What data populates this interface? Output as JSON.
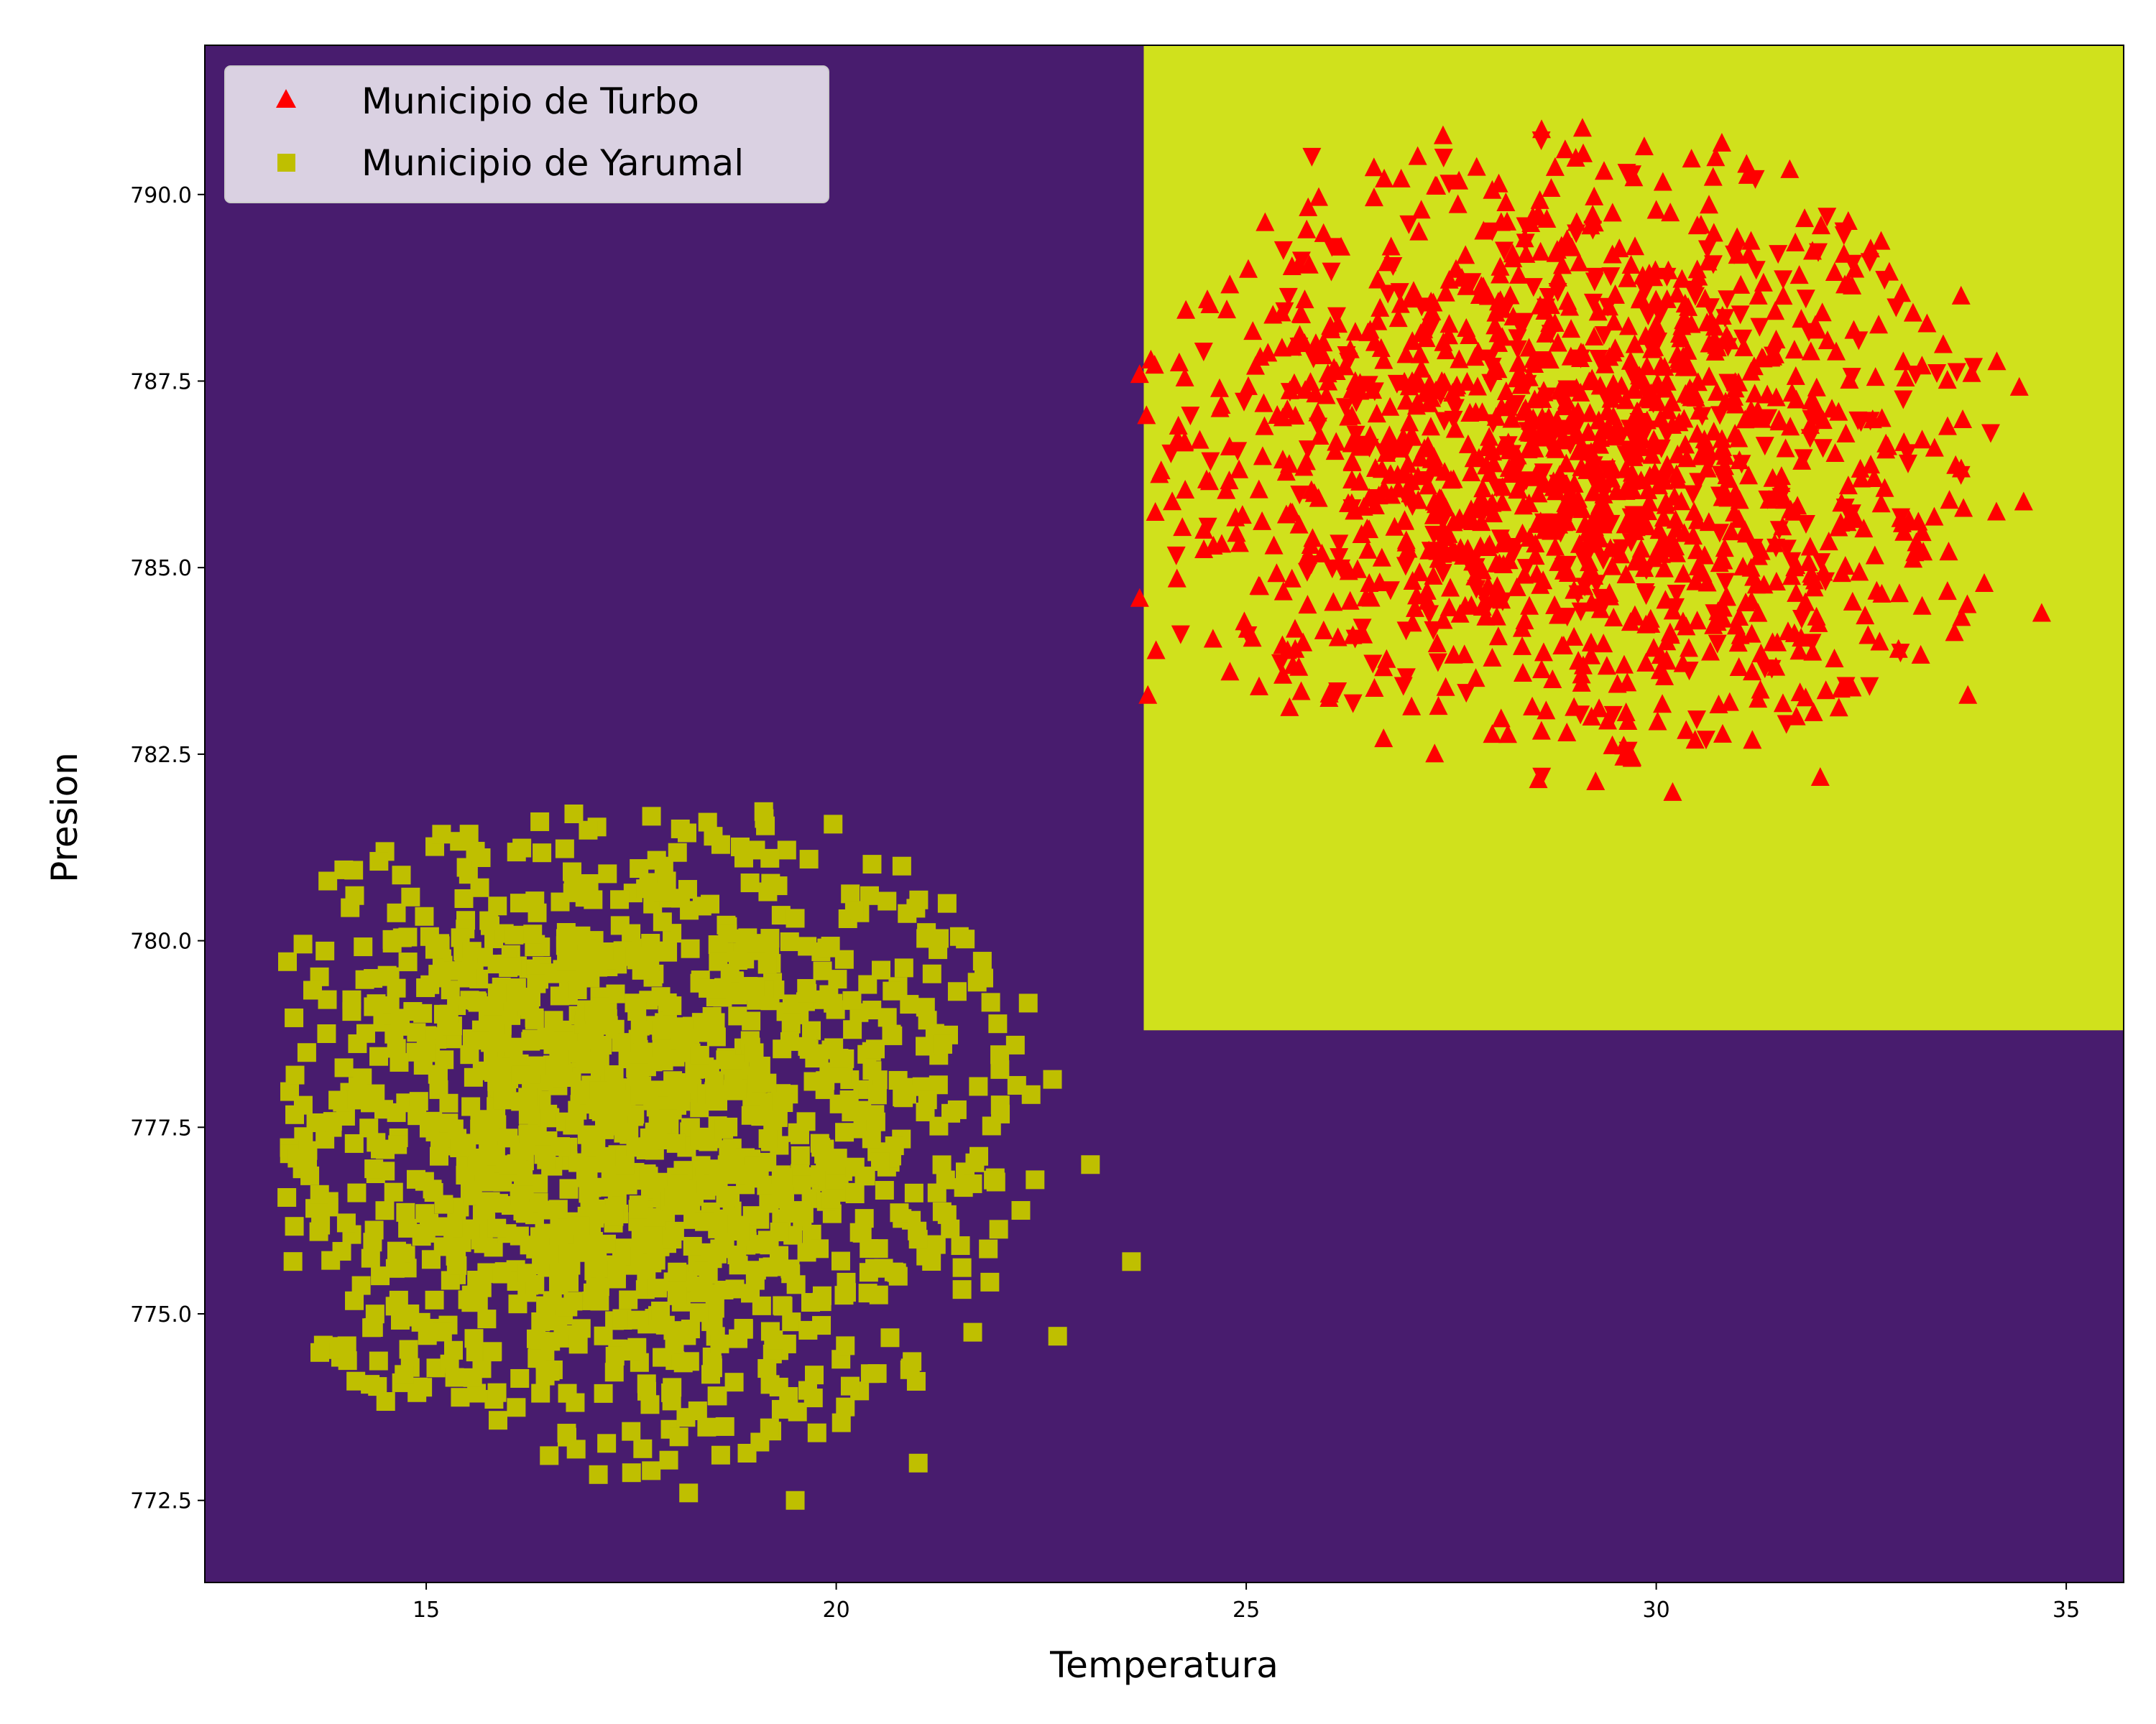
{
  "chart_data": {
    "type": "scatter",
    "title": "",
    "xlabel": "Temperatura",
    "ylabel": "Presion",
    "xlim": [
      12.3,
      35.7
    ],
    "ylim": [
      771.4,
      792.0
    ],
    "xticks": [
      15,
      20,
      25,
      30,
      35
    ],
    "xtick_labels": [
      "15",
      "20",
      "25",
      "30",
      "35"
    ],
    "yticks": [
      772.5,
      775.0,
      777.5,
      780.0,
      782.5,
      785.0,
      787.5,
      790.0
    ],
    "ytick_labels": [
      "772.5",
      "775.0",
      "777.5",
      "780.0",
      "782.5",
      "785.0",
      "787.5",
      "790.0"
    ],
    "grid": false,
    "legend_position": "upper-left",
    "decision_regions": [
      {
        "class": "Municipio de Yarumal",
        "color": "#481c6e",
        "x": [
          12.3,
          35.7
        ],
        "y": [
          771.4,
          792.0
        ]
      },
      {
        "class": "Municipio de Turbo",
        "color": "#d0e11c",
        "x": [
          23.75,
          35.7
        ],
        "y": [
          778.8,
          792.0
        ]
      }
    ],
    "series": [
      {
        "name": "Municipio de Turbo",
        "marker": "triangle",
        "color": "#ff0000",
        "cluster": {
          "x_range": [
            23.6,
            34.7
          ],
          "y_range": [
            782.0,
            790.9
          ],
          "center": [
            29.0,
            786.5
          ]
        },
        "points": [
          [
            23.7,
            787.6
          ],
          [
            23.8,
            783.3
          ],
          [
            23.9,
            783.9
          ],
          [
            23.7,
            784.6
          ],
          [
            24.2,
            784.1
          ],
          [
            25.8,
            790.5
          ],
          [
            27.4,
            790.8
          ],
          [
            29.1,
            790.9
          ],
          [
            30.8,
            790.7
          ],
          [
            32.3,
            788.8
          ],
          [
            33.5,
            788.0
          ],
          [
            34.0,
            784.8
          ],
          [
            34.7,
            784.4
          ],
          [
            33.8,
            783.3
          ],
          [
            32.0,
            782.2
          ],
          [
            30.2,
            782.0
          ],
          [
            28.0,
            783.8
          ],
          [
            26.3,
            784.1
          ],
          [
            24.6,
            785.3
          ],
          [
            24.8,
            788.8
          ],
          [
            26.0,
            787.5
          ],
          [
            27.0,
            786.0
          ],
          [
            28.5,
            787.8
          ],
          [
            29.5,
            785.2
          ],
          [
            30.5,
            786.8
          ],
          [
            31.5,
            785.5
          ],
          [
            32.5,
            786.2
          ],
          [
            28.0,
            789.5
          ],
          [
            29.8,
            788.6
          ],
          [
            31.0,
            784.0
          ],
          [
            26.5,
            784.8
          ],
          [
            25.2,
            786.5
          ],
          [
            27.8,
            785.0
          ],
          [
            30.0,
            789.8
          ],
          [
            33.0,
            785.6
          ]
        ]
      },
      {
        "name": "Municipio de Yarumal",
        "marker": "square",
        "color": "#bfbf00",
        "cluster": {
          "x_range": [
            13.3,
            23.7
          ],
          "y_range": [
            772.4,
            781.8
          ],
          "center": [
            17.5,
            777.5
          ]
        },
        "points": [
          [
            13.4,
            778.2
          ],
          [
            13.8,
            780.8
          ],
          [
            15.6,
            781.2
          ],
          [
            16.8,
            781.7
          ],
          [
            18.5,
            781.4
          ],
          [
            20.8,
            781.0
          ],
          [
            21.8,
            779.5
          ],
          [
            23.1,
            777.0
          ],
          [
            23.6,
            775.7
          ],
          [
            22.7,
            774.7
          ],
          [
            21.0,
            773.0
          ],
          [
            19.5,
            772.5
          ],
          [
            18.2,
            772.6
          ],
          [
            16.5,
            773.1
          ],
          [
            14.8,
            775.0
          ],
          [
            13.7,
            776.6
          ],
          [
            15.0,
            778.5
          ],
          [
            16.0,
            777.0
          ],
          [
            17.0,
            779.5
          ],
          [
            18.0,
            776.0
          ],
          [
            19.0,
            778.5
          ],
          [
            20.0,
            777.0
          ],
          [
            21.0,
            776.0
          ],
          [
            17.5,
            774.5
          ],
          [
            15.5,
            779.5
          ],
          [
            19.5,
            780.3
          ],
          [
            20.5,
            774.2
          ],
          [
            16.5,
            775.8
          ],
          [
            22.0,
            777.8
          ],
          [
            14.5,
            777.2
          ]
        ]
      }
    ]
  }
}
